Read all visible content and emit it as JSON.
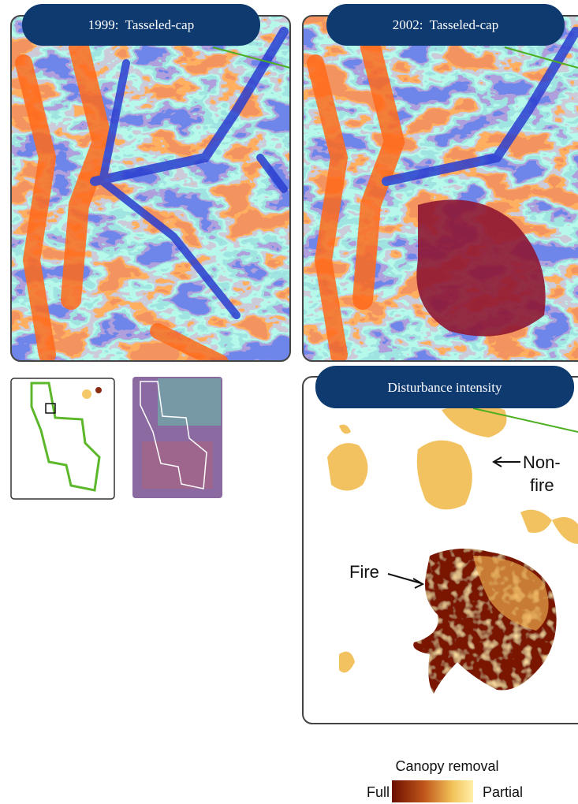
{
  "panels": [
    {
      "title": "1999:  Tasseled-cap"
    },
    {
      "title": "2002:  Tasseled-cap"
    },
    {
      "title": "Disturbance intensity"
    }
  ],
  "annotations": {
    "non_fire": [
      "Non-",
      "fire"
    ],
    "fire": "Fire"
  },
  "legend": {
    "title": "Canopy removal",
    "low_label": "Full",
    "high_label": "Partial"
  }
}
